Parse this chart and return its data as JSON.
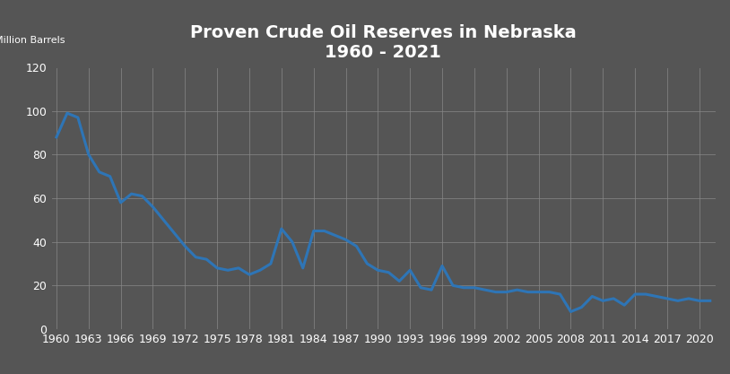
{
  "title_line1": "Proven Crude Oil Reserves in Nebraska",
  "title_line2": "1960 - 2021",
  "ylabel": "Million Barrels",
  "background_color": "#555555",
  "line_color": "#2e75b6",
  "text_color": "#ffffff",
  "grid_color": "#888888",
  "ylim": [
    0,
    120
  ],
  "yticks": [
    0,
    20,
    40,
    60,
    80,
    100,
    120
  ],
  "xticks": [
    1960,
    1963,
    1966,
    1969,
    1972,
    1975,
    1978,
    1981,
    1984,
    1987,
    1990,
    1993,
    1996,
    1999,
    2002,
    2005,
    2008,
    2011,
    2014,
    2017,
    2020
  ],
  "xlim": [
    1959.5,
    2021.5
  ],
  "years": [
    1960,
    1961,
    1962,
    1963,
    1964,
    1965,
    1966,
    1967,
    1968,
    1969,
    1970,
    1971,
    1972,
    1973,
    1974,
    1975,
    1976,
    1977,
    1978,
    1979,
    1980,
    1981,
    1982,
    1983,
    1984,
    1985,
    1986,
    1987,
    1988,
    1989,
    1990,
    1991,
    1992,
    1993,
    1994,
    1995,
    1996,
    1997,
    1998,
    1999,
    2000,
    2001,
    2002,
    2003,
    2004,
    2005,
    2006,
    2007,
    2008,
    2009,
    2010,
    2011,
    2012,
    2013,
    2014,
    2015,
    2016,
    2017,
    2018,
    2019,
    2020,
    2021
  ],
  "values": [
    88,
    99,
    97,
    80,
    72,
    70,
    58,
    62,
    61,
    56,
    50,
    44,
    38,
    33,
    32,
    28,
    27,
    28,
    25,
    27,
    30,
    46,
    40,
    28,
    45,
    45,
    43,
    41,
    38,
    30,
    27,
    26,
    22,
    27,
    19,
    18,
    29,
    20,
    19,
    19,
    18,
    17,
    17,
    18,
    17,
    17,
    17,
    16,
    8,
    10,
    15,
    13,
    14,
    11,
    16,
    16,
    15,
    14,
    13,
    14,
    13,
    13
  ],
  "line_width": 2.2,
  "title_fontsize": 14,
  "tick_fontsize": 9,
  "ylabel_fontsize": 8
}
